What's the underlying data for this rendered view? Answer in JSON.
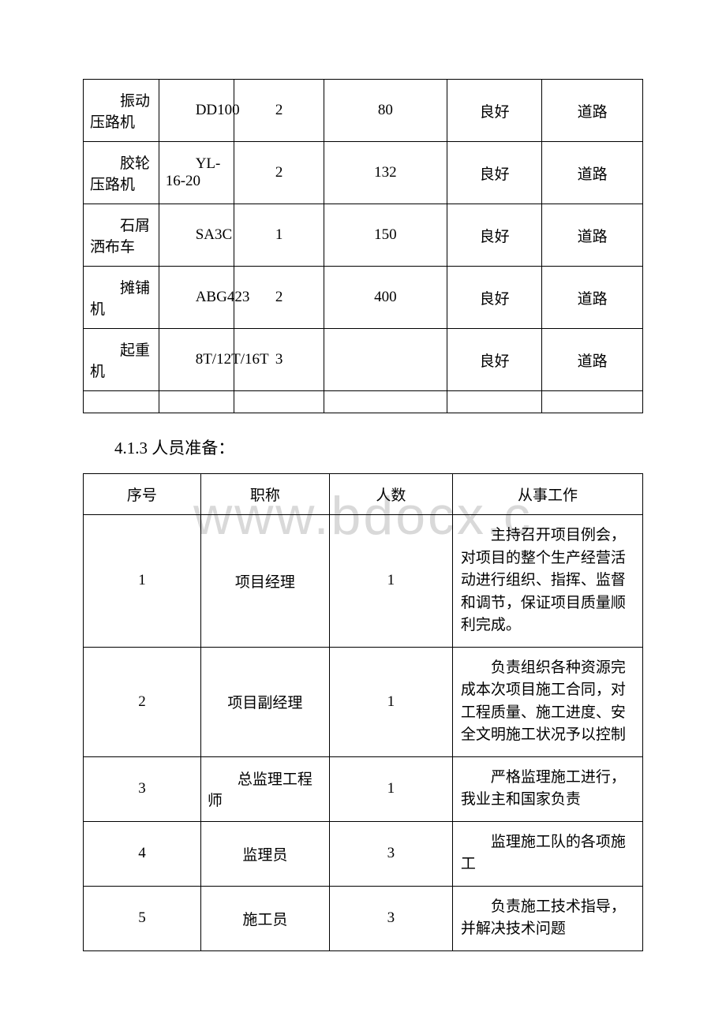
{
  "watermark": "www.bdocx.c",
  "table1": {
    "colWidths": [
      "13.5%",
      "13.5%",
      "16%",
      "22%",
      "17%",
      "18%"
    ],
    "rows": [
      {
        "c1": "振动压路机",
        "c2": "DD100",
        "c3": "2",
        "c4": "80",
        "c5": "良好",
        "c6": "道路"
      },
      {
        "c1": "胶轮压路机",
        "c2": "YL-16-20",
        "c3": "2",
        "c4": "132",
        "c5": "良好",
        "c6": "道路"
      },
      {
        "c1": "石屑洒布车",
        "c2": "SA3C",
        "c3": "1",
        "c4": "150",
        "c5": "良好",
        "c6": "道路"
      },
      {
        "c1": "摊铺机",
        "c2": "ABG423",
        "c3": "2",
        "c4": "400",
        "c5": "良好",
        "c6": "道路"
      },
      {
        "c1": "起重机",
        "c2": "8T/12T/16T",
        "c3": "3",
        "c4": "",
        "c5": "良好",
        "c6": "道路"
      }
    ],
    "borderColor": "#000000"
  },
  "heading": "4.1.3 人员准备：",
  "table2": {
    "colWidths": [
      "21%",
      "23%",
      "22%",
      "34%"
    ],
    "headers": {
      "h1": "序号",
      "h2": "职称",
      "h3": "人数",
      "h4": "从事工作"
    },
    "rows": [
      {
        "no": "1",
        "title": "项目经理",
        "count": "1",
        "desc": "主持召开项目例会，对项目的整个生产经营活动进行组织、指挥、监督和调节，保证项目质量顺利完成。"
      },
      {
        "no": "2",
        "title": "项目副经理",
        "count": "1",
        "desc": "负责组织各种资源完成本次项目施工合同，对工程质量、施工进度、安全文明施工状况予以控制"
      },
      {
        "no": "3",
        "title": "总监理工程师",
        "count": "1",
        "desc": "严格监理施工进行，我业主和国家负责"
      },
      {
        "no": "4",
        "title": "监理员",
        "count": "3",
        "desc": "监理施工队的各项施工"
      },
      {
        "no": "5",
        "title": "施工员",
        "count": "3",
        "desc": "负责施工技术指导，并解决技术问题"
      }
    ],
    "borderColor": "#000000"
  },
  "colors": {
    "text": "#000000",
    "background": "#ffffff",
    "watermark": "#d9d9d9"
  },
  "typography": {
    "bodyFontSize": 19,
    "headingFontSize": 21,
    "watermarkFontSize": 68,
    "fontFamily": "SimSun"
  }
}
